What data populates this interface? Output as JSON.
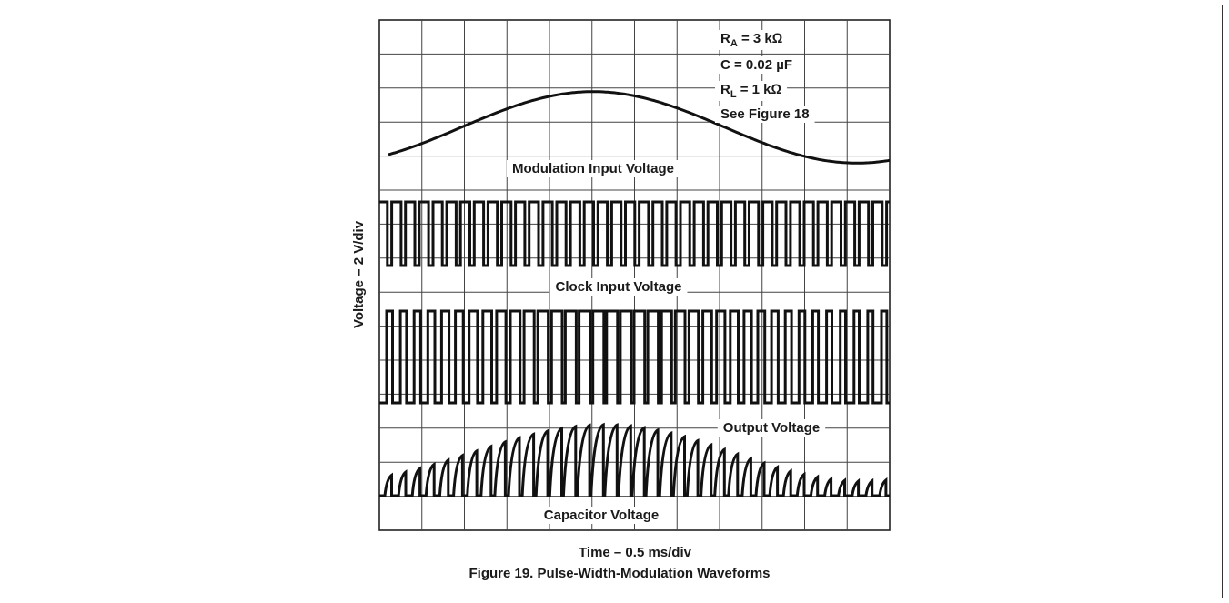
{
  "chart_data": {
    "type": "line",
    "title": "Figure 19. Pulse-Width-Modulation Waveforms",
    "xlabel": "Time – 0.5 ms/div",
    "ylabel": "Voltage – 2 V/div",
    "grid": true,
    "grid_divisions": {
      "x": 12,
      "y": 15
    },
    "conditions": {
      "ra": {
        "sym": "R",
        "sub": "A",
        "rest": " = 3 kΩ"
      },
      "c": "C = 0.02 µF",
      "rl": {
        "sym": "R",
        "sub": "L",
        "rest": " = 1 kΩ"
      },
      "ref": "See Figure 18"
    },
    "series": [
      {
        "name": "Modulation Input Voltage",
        "shape": "sine",
        "cycles": 0.95,
        "amplitude_div": 2.1
      },
      {
        "name": "Clock Input Voltage",
        "shape": "square",
        "pulses": 37,
        "amplitude_div": 1.75
      },
      {
        "name": "Output Voltage",
        "shape": "pwm",
        "pulses": 37,
        "amplitude_div": 2.5
      },
      {
        "name": "Capacitor Voltage",
        "shape": "sawtooth",
        "pulses": 37,
        "amplitude_div": 2.0
      }
    ]
  }
}
